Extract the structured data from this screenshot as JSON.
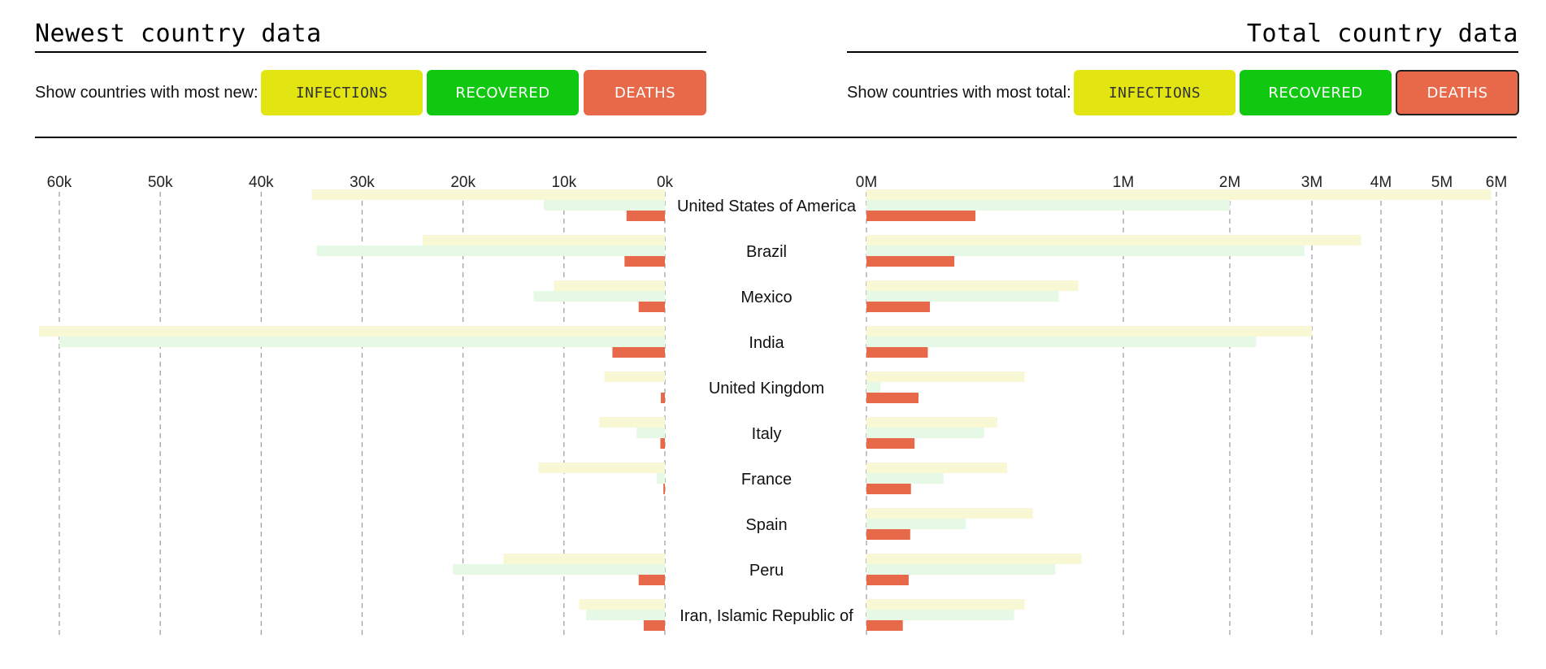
{
  "header": {
    "left_title": "Newest country data",
    "right_title": "Total country data"
  },
  "controls_left": {
    "label": "Show countries with most new:",
    "infections": "INFECTIONS",
    "recovered": "RECOVERED",
    "deaths": "DEATHS"
  },
  "controls_right": {
    "label": "Show countries with most total:",
    "infections": "INFECTIONS",
    "recovered": "RECOVERED",
    "deaths": "DEATHS",
    "active": "deaths"
  },
  "colors": {
    "infections": "#e2e512",
    "recovered": "#10c810",
    "deaths": "#e8684a",
    "infections_bar": "#f8f8d4",
    "recovered_bar": "#e6f8e6",
    "deaths_bar": "#e8684a",
    "grid": "#999999"
  },
  "chart_data": [
    {
      "type": "bar",
      "orientation": "horizontal",
      "direction": "right-to-left",
      "xticks": [
        "60k",
        "50k",
        "40k",
        "30k",
        "20k",
        "10k",
        "0k"
      ],
      "xtick_values": [
        60000,
        50000,
        40000,
        30000,
        20000,
        10000,
        0
      ],
      "categories": [
        "United States of America",
        "Brazil",
        "Mexico",
        "India",
        "United Kingdom",
        "Italy",
        "France",
        "Spain",
        "Peru",
        "Iran, Islamic Republic of"
      ],
      "series": [
        {
          "key": "infections",
          "values": [
            35000,
            24000,
            11000,
            62000,
            6000,
            6500,
            12500,
            0,
            16000,
            8500
          ]
        },
        {
          "key": "recovered",
          "values": [
            12000,
            34500,
            13000,
            60000,
            0,
            2800,
            800,
            0,
            21000,
            7800
          ]
        },
        {
          "key": "deaths",
          "values": [
            3800,
            4000,
            2600,
            5200,
            400,
            450,
            150,
            0,
            2600,
            2100
          ]
        }
      ]
    },
    {
      "type": "bar",
      "orientation": "horizontal",
      "direction": "left-to-right",
      "xticks": [
        "0M",
        "1M",
        "2M",
        "3M",
        "4M",
        "5M",
        "6M"
      ],
      "xtick_values": [
        0,
        1000000,
        2000000,
        3000000,
        4000000,
        5000000,
        6000000
      ],
      "categories": [
        "United States of America",
        "Brazil",
        "Mexico",
        "India",
        "United Kingdom",
        "Italy",
        "France",
        "Spain",
        "Peru",
        "Iran, Islamic Republic of"
      ],
      "series": [
        {
          "key": "infections",
          "values": [
            5900000,
            3700000,
            680000,
            3000000,
            380000,
            260000,
            300000,
            420000,
            700000,
            380000
          ]
        },
        {
          "key": "recovered",
          "values": [
            2000000,
            2900000,
            560000,
            2300000,
            3000,
            210000,
            90000,
            150000,
            540000,
            330000
          ]
        },
        {
          "key": "deaths",
          "values": [
            180000,
            117000,
            61000,
            57000,
            41000,
            35000,
            30000,
            29000,
            27000,
            20000
          ]
        }
      ]
    }
  ]
}
